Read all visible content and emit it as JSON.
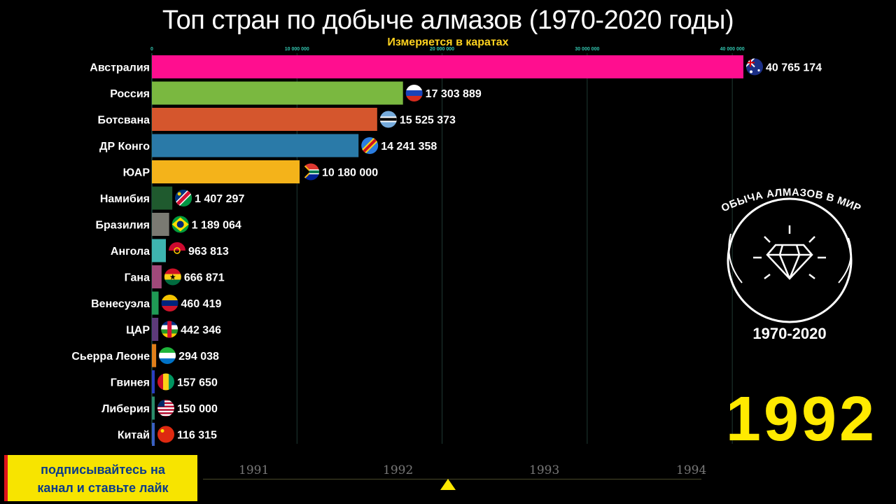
{
  "title": "Топ стран по добыче алмазов (1970-2020 годы)",
  "subtitle": "Измеряется в каратах",
  "current_year": "1992",
  "badge": {
    "top_text": "ДОБЫЧА АЛМАЗОВ В МИРЕ",
    "bottom_text": "1970-2020",
    "icon": "diamond-icon"
  },
  "cta": {
    "line1": "подписывайтесь на",
    "line2": "канал и ставьте лайк"
  },
  "timeline": {
    "years": [
      "1991",
      "1992",
      "1993",
      "1994"
    ],
    "current": "1992"
  },
  "chart_data": {
    "type": "bar",
    "orientation": "horizontal",
    "title": "Топ стран по добыче алмазов (1970-2020 годы)",
    "subtitle": "Измеряется в каратах",
    "xlim": [
      0,
      41000000
    ],
    "grid": true,
    "x_ticks": [
      {
        "value": 0,
        "label": "0"
      },
      {
        "value": 10000000,
        "label": "10 000 000"
      },
      {
        "value": 20000000,
        "label": "20 000 000"
      },
      {
        "value": 30000000,
        "label": "30 000 000"
      },
      {
        "value": 40000000,
        "label": "40 000 000"
      }
    ],
    "categories": [
      "Австралия",
      "Россия",
      "Ботсвана",
      "ДР Конго",
      "ЮАР",
      "Намибия",
      "Бразилия",
      "Ангола",
      "Гана",
      "Венесуэла",
      "ЦАР",
      "Сьерра Леоне",
      "Гвинея",
      "Либерия",
      "Китай"
    ],
    "values": [
      40765174,
      17303889,
      15525373,
      14241358,
      10180000,
      1407297,
      1189064,
      963813,
      666871,
      460419,
      442346,
      294038,
      157650,
      150000,
      116315
    ],
    "value_labels": [
      "40 765 174",
      "17 303 889",
      "15 525 373",
      "14 241 358",
      "10 180 000",
      "1 407 297",
      "1 189 064",
      "963 813",
      "666 871",
      "460 419",
      "442 346",
      "294 038",
      "157 650",
      "150 000",
      "116 315"
    ],
    "colors": [
      "#ff0e8f",
      "#7ab840",
      "#d5562d",
      "#2a7aa8",
      "#f4b31a",
      "#1f5a2e",
      "#7a7a72",
      "#3eb5b0",
      "#a0497a",
      "#1f9a55",
      "#5d3a7a",
      "#e07f1a",
      "#2a3ec2",
      "#2a8c6a",
      "#3a5fc2"
    ],
    "flags": [
      "australia-flag",
      "russia-flag",
      "botswana-flag",
      "drc-flag",
      "south-africa-flag",
      "namibia-flag",
      "brazil-flag",
      "angola-flag",
      "ghana-flag",
      "venezuela-flag",
      "car-flag",
      "sierra-leone-flag",
      "guinea-flag",
      "liberia-flag",
      "china-flag"
    ]
  }
}
